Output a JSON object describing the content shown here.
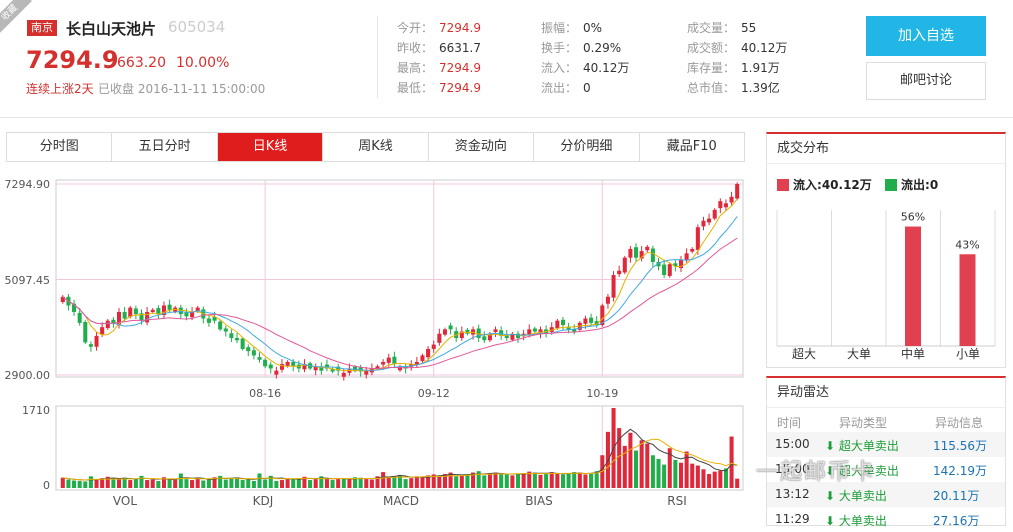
{
  "header": {
    "ribbon": "收藏",
    "city": "南京",
    "name": "长白山天池片",
    "code": "605034",
    "price": "7294.9",
    "change": "663.20",
    "change_pct": "10.00%",
    "streak": "连续上涨2天",
    "close_status": "已收盘 2016-11-11 15:00:00",
    "quotes": [
      [
        {
          "label": "今开：",
          "value": "7294.9",
          "red": true
        },
        {
          "label": "昨收：",
          "value": "6631.7",
          "red": false
        },
        {
          "label": "最高：",
          "value": "7294.9",
          "red": true
        },
        {
          "label": "最低：",
          "value": "7294.9",
          "red": true
        }
      ],
      [
        {
          "label": "振幅：",
          "value": "0%",
          "red": false
        },
        {
          "label": "换手：",
          "value": "0.29%",
          "red": false
        },
        {
          "label": "流入：",
          "value": "40.12万",
          "red": false
        },
        {
          "label": "流出：",
          "value": "0",
          "red": false
        }
      ],
      [
        {
          "label": "成交量：",
          "value": "55",
          "red": false
        },
        {
          "label": "成交额：",
          "value": "40.12万",
          "red": false
        },
        {
          "label": "库存量：",
          "value": "1.91万",
          "red": false
        },
        {
          "label": "总市值：",
          "value": "1.39亿",
          "red": false
        }
      ]
    ],
    "watch_button": "加入自选",
    "forum_button": "邮吧讨论"
  },
  "tabs": [
    "分时图",
    "五日分时",
    "日K线",
    "周K线",
    "资金动向",
    "分价明细",
    "藏品F10"
  ],
  "active_tab": 2,
  "colors": {
    "up": "#e0283b",
    "down": "#1fae4b",
    "accent": "#d5302e",
    "tab_active": "#e01d1d",
    "button": "#22b6e6"
  },
  "chart_data": [
    {
      "type": "candlestick",
      "y_ticks": [
        "7294.90",
        "5097.45",
        "2900.00"
      ],
      "ylim": [
        2900,
        7294.9
      ],
      "x_ticks": [
        {
          "label": "08-16",
          "index": 36
        },
        {
          "label": "09-12",
          "index": 66
        },
        {
          "label": "10-19",
          "index": 96
        }
      ],
      "grid": true,
      "ohlc_close": [
        4700,
        4500,
        4350,
        4100,
        3650,
        3550,
        3800,
        4000,
        4150,
        4100,
        4350,
        4200,
        4450,
        4300,
        4150,
        4350,
        4400,
        4300,
        4500,
        4400,
        4450,
        4300,
        4250,
        4350,
        4450,
        4200,
        4100,
        4150,
        3950,
        3900,
        3750,
        3700,
        3500,
        3450,
        3350,
        3250,
        3100,
        3050,
        3000,
        3150,
        3200,
        3100,
        3050,
        3150,
        3050,
        3100,
        3000,
        3050,
        2980,
        3000,
        2950,
        3050,
        3000,
        2980,
        3000,
        3050,
        3100,
        3200,
        3300,
        3150,
        3100,
        3050,
        3150,
        3200,
        3350,
        3500,
        3600,
        3850,
        3950,
        3950,
        3750,
        3900,
        3850,
        3950,
        3750,
        3700,
        3850,
        3950,
        3800,
        3750,
        3850,
        3750,
        3850,
        3950,
        3900,
        3950,
        3850,
        4000,
        4150,
        4050,
        3950,
        3900,
        4100,
        4200,
        4100,
        4050,
        4500,
        4700,
        5200,
        5300,
        5600,
        5800,
        5600,
        5750,
        5850,
        5500,
        5400,
        5200,
        5450,
        5400,
        5550,
        5700,
        5800,
        6300,
        6450,
        6500,
        6700,
        6900,
        6850,
        7000,
        7294.9
      ],
      "series": [
        {
          "name": "MA5"
        },
        {
          "name": "MA10"
        },
        {
          "name": "MA20"
        }
      ]
    },
    {
      "type": "bar",
      "y_ticks": [
        "1710",
        "0"
      ],
      "ylim": [
        0,
        1710
      ],
      "indicator_labels": [
        "VOL",
        "KDJ",
        "MACD",
        "BIAS",
        "RSI"
      ],
      "volumes": [
        220,
        180,
        160,
        150,
        140,
        250,
        190,
        210,
        240,
        180,
        200,
        220,
        170,
        190,
        260,
        170,
        180,
        150,
        230,
        170,
        200,
        310,
        190,
        170,
        210,
        160,
        190,
        230,
        260,
        180,
        200,
        210,
        170,
        190,
        150,
        310,
        180,
        260,
        150,
        170,
        200,
        190,
        210,
        240,
        170,
        190,
        250,
        210,
        170,
        190,
        200,
        180,
        230,
        220,
        190,
        180,
        250,
        340,
        220,
        250,
        280,
        190,
        210,
        250,
        230,
        270,
        290,
        260,
        300,
        330,
        250,
        260,
        290,
        330,
        360,
        270,
        300,
        330,
        290,
        310,
        270,
        300,
        320,
        350,
        330,
        280,
        300,
        340,
        310,
        290,
        300,
        340,
        330,
        290,
        320,
        360,
        700,
        1200,
        1710,
        1280,
        900,
        1180,
        800,
        1020,
        950,
        700,
        620,
        500,
        850,
        600,
        540,
        780,
        520,
        480,
        400,
        300,
        350,
        370,
        420,
        1100,
        200
      ]
    },
    {
      "type": "bar",
      "title": "成交分布",
      "legend": [
        {
          "name": "流入",
          "value": "40.12万"
        },
        {
          "name": "流出",
          "value": "0"
        }
      ],
      "categories": [
        "超大",
        "大单",
        "中单",
        "小单"
      ],
      "values": [
        0,
        0,
        56,
        43
      ],
      "labels": [
        "",
        "",
        "56%",
        "43%"
      ]
    }
  ],
  "radar": {
    "title": "异动雷达",
    "headers": [
      "时间",
      "异动类型",
      "异动信息"
    ],
    "rows": [
      {
        "time": "15:00",
        "type": "超大单卖出",
        "info": "115.56万"
      },
      {
        "time": "15:00",
        "type": "超大单卖出",
        "info": "142.19万"
      },
      {
        "time": "13:12",
        "type": "大单卖出",
        "info": "20.11万"
      },
      {
        "time": "11:29",
        "type": "大单卖出",
        "info": "27.16万"
      }
    ]
  },
  "watermark": "一起邮币卡"
}
